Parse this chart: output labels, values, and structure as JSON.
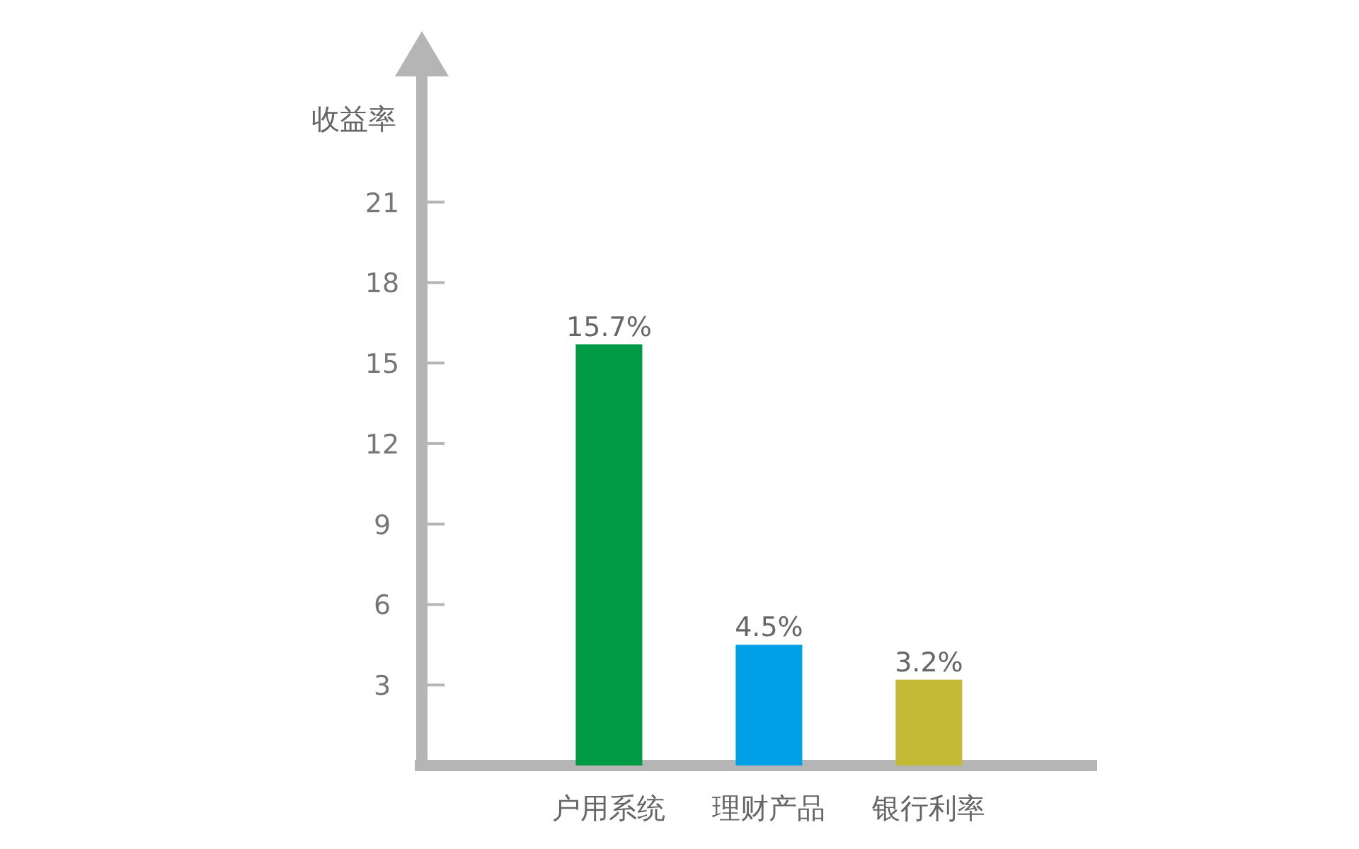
{
  "chart_data": {
    "type": "bar",
    "ylabel": "收益率",
    "categories": [
      "户用系统",
      "理财产品",
      "银行利率"
    ],
    "values": [
      15.7,
      4.5,
      3.2
    ],
    "colors": [
      "#009a44",
      "#00a0e9",
      "#c4b935"
    ],
    "value_labels": [
      "15.7%",
      "4.5%",
      "3.2%"
    ],
    "ylim": [
      0,
      26
    ],
    "yticks": [
      3,
      6,
      9,
      12,
      15,
      18,
      21
    ],
    "grid": false
  }
}
